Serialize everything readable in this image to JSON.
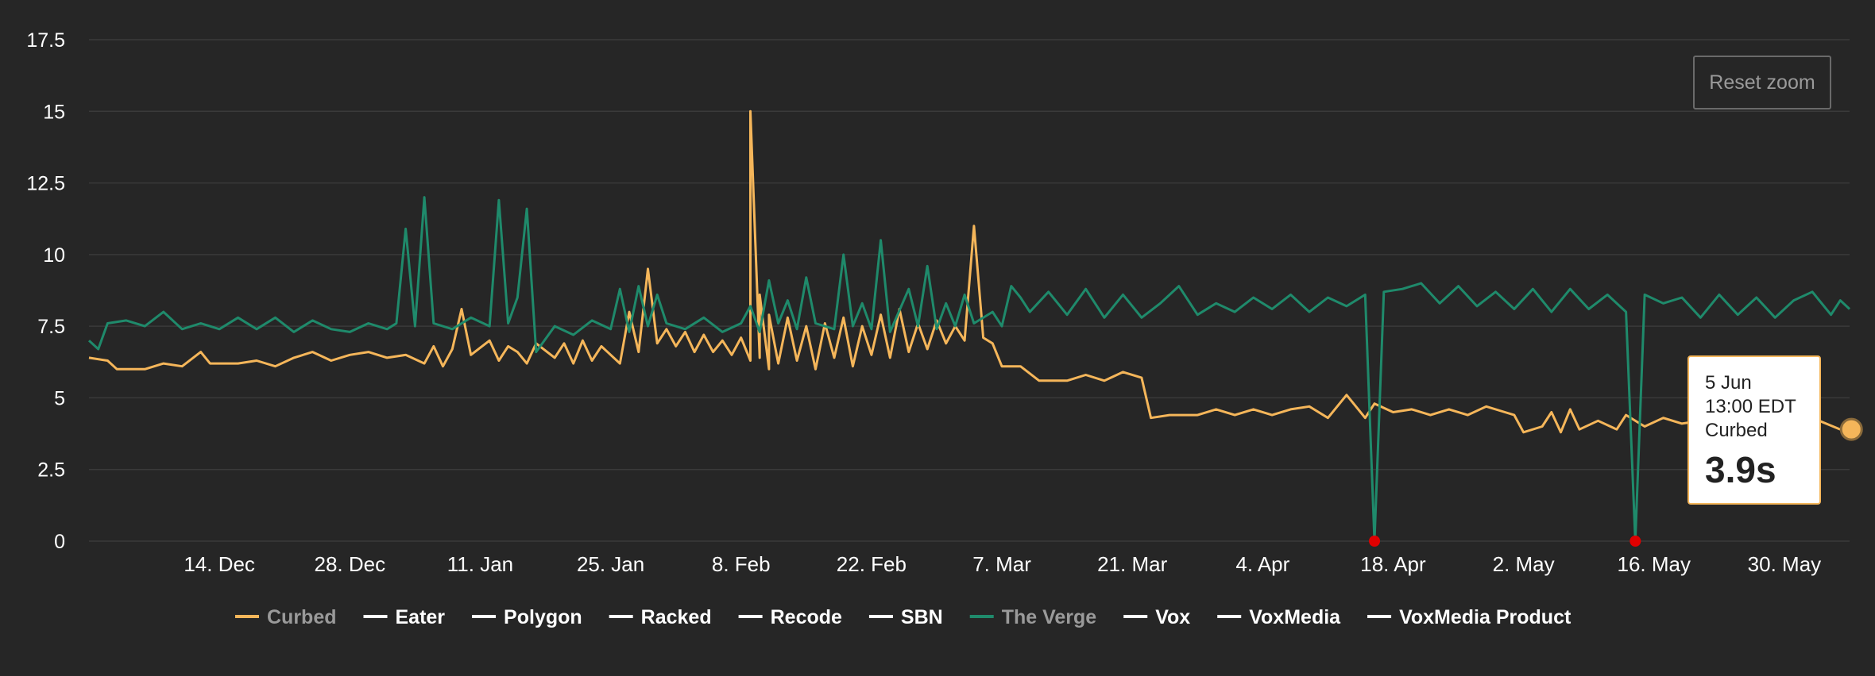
{
  "chart_data": {
    "type": "line",
    "title": "",
    "xlabel": "",
    "ylabel": "",
    "ylim": [
      0,
      17.5
    ],
    "yticks": [
      "0",
      "2.5",
      "5",
      "7.5",
      "10",
      "12.5",
      "15",
      "17.5"
    ],
    "xlim": [
      "2015-11-30",
      "2016-06-06"
    ],
    "xticks": [
      {
        "date": "2015-12-14",
        "label": "14. Dec"
      },
      {
        "date": "2015-12-28",
        "label": "28. Dec"
      },
      {
        "date": "2016-01-11",
        "label": "11. Jan"
      },
      {
        "date": "2016-01-25",
        "label": "25. Jan"
      },
      {
        "date": "2016-02-08",
        "label": "8. Feb"
      },
      {
        "date": "2016-02-22",
        "label": "22. Feb"
      },
      {
        "date": "2016-03-07",
        "label": "7. Mar"
      },
      {
        "date": "2016-03-21",
        "label": "21. Mar"
      },
      {
        "date": "2016-04-04",
        "label": "4. Apr"
      },
      {
        "date": "2016-04-18",
        "label": "18. Apr"
      },
      {
        "date": "2016-05-02",
        "label": "2. May"
      },
      {
        "date": "2016-05-16",
        "label": "16. May"
      },
      {
        "date": "2016-05-30",
        "label": "30. May"
      }
    ],
    "grid": true,
    "legend_placement": "bottom",
    "series": [
      {
        "name": "Curbed",
        "visible": true,
        "color": "#f5b65a",
        "points": [
          [
            "2015-11-30",
            6.4
          ],
          [
            "2015-12-02",
            6.3
          ],
          [
            "2015-12-03",
            6.0
          ],
          [
            "2015-12-06",
            6.0
          ],
          [
            "2015-12-08",
            6.2
          ],
          [
            "2015-12-10",
            6.1
          ],
          [
            "2015-12-12",
            6.6
          ],
          [
            "2015-12-13",
            6.2
          ],
          [
            "2015-12-16",
            6.2
          ],
          [
            "2015-12-18",
            6.3
          ],
          [
            "2015-12-20",
            6.1
          ],
          [
            "2015-12-22",
            6.4
          ],
          [
            "2015-12-24",
            6.6
          ],
          [
            "2015-12-26",
            6.3
          ],
          [
            "2015-12-28",
            6.5
          ],
          [
            "2015-12-30",
            6.6
          ],
          [
            "2016-01-01",
            6.4
          ],
          [
            "2016-01-03",
            6.5
          ],
          [
            "2016-01-05",
            6.2
          ],
          [
            "2016-01-06",
            6.8
          ],
          [
            "2016-01-07",
            6.1
          ],
          [
            "2016-01-08",
            6.7
          ],
          [
            "2016-01-09",
            8.1
          ],
          [
            "2016-01-10",
            6.5
          ],
          [
            "2016-01-12",
            7.0
          ],
          [
            "2016-01-13",
            6.3
          ],
          [
            "2016-01-14",
            6.8
          ],
          [
            "2016-01-15",
            6.6
          ],
          [
            "2016-01-16",
            6.2
          ],
          [
            "2016-01-17",
            6.9
          ],
          [
            "2016-01-19",
            6.4
          ],
          [
            "2016-01-20",
            6.9
          ],
          [
            "2016-01-21",
            6.2
          ],
          [
            "2016-01-22",
            7.0
          ],
          [
            "2016-01-23",
            6.3
          ],
          [
            "2016-01-24",
            6.8
          ],
          [
            "2016-01-26",
            6.2
          ],
          [
            "2016-01-27",
            8.0
          ],
          [
            "2016-01-28",
            6.6
          ],
          [
            "2016-01-29",
            9.5
          ],
          [
            "2016-01-30",
            6.9
          ],
          [
            "2016-01-31",
            7.4
          ],
          [
            "2016-02-01",
            6.8
          ],
          [
            "2016-02-02",
            7.3
          ],
          [
            "2016-02-03",
            6.6
          ],
          [
            "2016-02-04",
            7.2
          ],
          [
            "2016-02-05",
            6.6
          ],
          [
            "2016-02-06",
            7.0
          ],
          [
            "2016-02-07",
            6.5
          ],
          [
            "2016-02-08",
            7.1
          ],
          [
            "2016-02-09",
            6.3
          ],
          [
            "2016-02-09",
            15.0
          ],
          [
            "2016-02-10",
            6.4
          ],
          [
            "2016-02-10",
            8.6
          ],
          [
            "2016-02-11",
            6.0
          ],
          [
            "2016-02-11",
            7.9
          ],
          [
            "2016-02-12",
            6.2
          ],
          [
            "2016-02-13",
            7.8
          ],
          [
            "2016-02-14",
            6.3
          ],
          [
            "2016-02-15",
            7.5
          ],
          [
            "2016-02-16",
            6.0
          ],
          [
            "2016-02-17",
            7.6
          ],
          [
            "2016-02-18",
            6.4
          ],
          [
            "2016-02-19",
            7.8
          ],
          [
            "2016-02-20",
            6.1
          ],
          [
            "2016-02-21",
            7.5
          ],
          [
            "2016-02-22",
            6.5
          ],
          [
            "2016-02-23",
            7.9
          ],
          [
            "2016-02-24",
            6.4
          ],
          [
            "2016-02-25",
            8.1
          ],
          [
            "2016-02-26",
            6.6
          ],
          [
            "2016-02-27",
            7.6
          ],
          [
            "2016-02-28",
            6.7
          ],
          [
            "2016-02-29",
            7.7
          ],
          [
            "2016-03-01",
            6.9
          ],
          [
            "2016-03-02",
            7.5
          ],
          [
            "2016-03-03",
            7.0
          ],
          [
            "2016-03-04",
            11.0
          ],
          [
            "2016-03-05",
            7.1
          ],
          [
            "2016-03-06",
            6.9
          ],
          [
            "2016-03-07",
            6.1
          ],
          [
            "2016-03-09",
            6.1
          ],
          [
            "2016-03-11",
            5.6
          ],
          [
            "2016-03-14",
            5.6
          ],
          [
            "2016-03-16",
            5.8
          ],
          [
            "2016-03-18",
            5.6
          ],
          [
            "2016-03-20",
            5.9
          ],
          [
            "2016-03-22",
            5.7
          ],
          [
            "2016-03-23",
            4.3
          ],
          [
            "2016-03-25",
            4.4
          ],
          [
            "2016-03-28",
            4.4
          ],
          [
            "2016-03-30",
            4.6
          ],
          [
            "2016-04-01",
            4.4
          ],
          [
            "2016-04-03",
            4.6
          ],
          [
            "2016-04-05",
            4.4
          ],
          [
            "2016-04-07",
            4.6
          ],
          [
            "2016-04-09",
            4.7
          ],
          [
            "2016-04-11",
            4.3
          ],
          [
            "2016-04-13",
            5.1
          ],
          [
            "2016-04-15",
            4.3
          ],
          [
            "2016-04-16",
            4.8
          ],
          [
            "2016-04-18",
            4.5
          ],
          [
            "2016-04-20",
            4.6
          ],
          [
            "2016-04-22",
            4.4
          ],
          [
            "2016-04-24",
            4.6
          ],
          [
            "2016-04-26",
            4.4
          ],
          [
            "2016-04-28",
            4.7
          ],
          [
            "2016-04-30",
            4.5
          ],
          [
            "2016-05-01",
            4.4
          ],
          [
            "2016-05-02",
            3.8
          ],
          [
            "2016-05-04",
            4.0
          ],
          [
            "2016-05-05",
            4.5
          ],
          [
            "2016-05-06",
            3.8
          ],
          [
            "2016-05-07",
            4.6
          ],
          [
            "2016-05-08",
            3.9
          ],
          [
            "2016-05-10",
            4.2
          ],
          [
            "2016-05-12",
            3.9
          ],
          [
            "2016-05-13",
            4.4
          ],
          [
            "2016-05-15",
            4.0
          ],
          [
            "2016-05-17",
            4.3
          ],
          [
            "2016-05-19",
            4.1
          ],
          [
            "2016-05-21",
            4.2
          ],
          [
            "2016-05-23",
            4.0
          ],
          [
            "2016-05-25",
            4.4
          ],
          [
            "2016-05-27",
            4.1
          ],
          [
            "2016-05-29",
            4.5
          ],
          [
            "2016-05-31",
            4.2
          ],
          [
            "2016-06-02",
            4.3
          ],
          [
            "2016-06-05",
            3.9
          ]
        ]
      },
      {
        "name": "Eater",
        "visible": false,
        "color": "#ffffff",
        "points": []
      },
      {
        "name": "Polygon",
        "visible": false,
        "color": "#ffffff",
        "points": []
      },
      {
        "name": "Racked",
        "visible": false,
        "color": "#ffffff",
        "points": []
      },
      {
        "name": "Recode",
        "visible": false,
        "color": "#ffffff",
        "points": []
      },
      {
        "name": "SBN",
        "visible": false,
        "color": "#ffffff",
        "points": []
      },
      {
        "name": "The Verge",
        "visible": true,
        "color": "#1f8a6b",
        "points": [
          [
            "2015-11-30",
            7.0
          ],
          [
            "2015-12-01",
            6.7
          ],
          [
            "2015-12-02",
            7.6
          ],
          [
            "2015-12-04",
            7.7
          ],
          [
            "2015-12-06",
            7.5
          ],
          [
            "2015-12-08",
            8.0
          ],
          [
            "2015-12-10",
            7.4
          ],
          [
            "2015-12-12",
            7.6
          ],
          [
            "2015-12-14",
            7.4
          ],
          [
            "2015-12-16",
            7.8
          ],
          [
            "2015-12-18",
            7.4
          ],
          [
            "2015-12-20",
            7.8
          ],
          [
            "2015-12-22",
            7.3
          ],
          [
            "2015-12-24",
            7.7
          ],
          [
            "2015-12-26",
            7.4
          ],
          [
            "2015-12-28",
            7.3
          ],
          [
            "2015-12-30",
            7.6
          ],
          [
            "2016-01-01",
            7.4
          ],
          [
            "2016-01-02",
            7.6
          ],
          [
            "2016-01-03",
            10.9
          ],
          [
            "2016-01-04",
            7.5
          ],
          [
            "2016-01-05",
            12.0
          ],
          [
            "2016-01-06",
            7.6
          ],
          [
            "2016-01-08",
            7.4
          ],
          [
            "2016-01-10",
            7.8
          ],
          [
            "2016-01-12",
            7.5
          ],
          [
            "2016-01-13",
            11.9
          ],
          [
            "2016-01-14",
            7.6
          ],
          [
            "2016-01-15",
            8.5
          ],
          [
            "2016-01-16",
            11.6
          ],
          [
            "2016-01-17",
            6.6
          ],
          [
            "2016-01-19",
            7.5
          ],
          [
            "2016-01-21",
            7.2
          ],
          [
            "2016-01-23",
            7.7
          ],
          [
            "2016-01-25",
            7.4
          ],
          [
            "2016-01-26",
            8.8
          ],
          [
            "2016-01-27",
            7.3
          ],
          [
            "2016-01-28",
            8.9
          ],
          [
            "2016-01-29",
            7.5
          ],
          [
            "2016-01-30",
            8.6
          ],
          [
            "2016-01-31",
            7.6
          ],
          [
            "2016-02-02",
            7.4
          ],
          [
            "2016-02-04",
            7.8
          ],
          [
            "2016-02-06",
            7.3
          ],
          [
            "2016-02-08",
            7.6
          ],
          [
            "2016-02-09",
            8.2
          ],
          [
            "2016-02-10",
            7.3
          ],
          [
            "2016-02-11",
            9.1
          ],
          [
            "2016-02-12",
            7.6
          ],
          [
            "2016-02-13",
            8.4
          ],
          [
            "2016-02-14",
            7.4
          ],
          [
            "2016-02-15",
            9.2
          ],
          [
            "2016-02-16",
            7.6
          ],
          [
            "2016-02-18",
            7.4
          ],
          [
            "2016-02-19",
            10.0
          ],
          [
            "2016-02-20",
            7.5
          ],
          [
            "2016-02-21",
            8.3
          ],
          [
            "2016-02-22",
            7.4
          ],
          [
            "2016-02-23",
            10.5
          ],
          [
            "2016-02-24",
            7.3
          ],
          [
            "2016-02-26",
            8.8
          ],
          [
            "2016-02-27",
            7.5
          ],
          [
            "2016-02-28",
            9.6
          ],
          [
            "2016-02-29",
            7.4
          ],
          [
            "2016-03-01",
            8.3
          ],
          [
            "2016-03-02",
            7.5
          ],
          [
            "2016-03-03",
            8.6
          ],
          [
            "2016-03-04",
            7.6
          ],
          [
            "2016-03-06",
            8.0
          ],
          [
            "2016-03-07",
            7.5
          ],
          [
            "2016-03-08",
            8.9
          ],
          [
            "2016-03-09",
            8.5
          ],
          [
            "2016-03-10",
            8.0
          ],
          [
            "2016-03-12",
            8.7
          ],
          [
            "2016-03-14",
            7.9
          ],
          [
            "2016-03-16",
            8.8
          ],
          [
            "2016-03-18",
            7.8
          ],
          [
            "2016-03-20",
            8.6
          ],
          [
            "2016-03-22",
            7.8
          ],
          [
            "2016-03-24",
            8.3
          ],
          [
            "2016-03-26",
            8.9
          ],
          [
            "2016-03-28",
            7.9
          ],
          [
            "2016-03-30",
            8.3
          ],
          [
            "2016-04-01",
            8.0
          ],
          [
            "2016-04-03",
            8.5
          ],
          [
            "2016-04-05",
            8.1
          ],
          [
            "2016-04-07",
            8.6
          ],
          [
            "2016-04-09",
            8.0
          ],
          [
            "2016-04-11",
            8.5
          ],
          [
            "2016-04-13",
            8.2
          ],
          [
            "2016-04-15",
            8.6
          ],
          [
            "2016-04-16",
            0
          ],
          [
            "2016-04-17",
            8.7
          ],
          [
            "2016-04-19",
            8.8
          ],
          [
            "2016-04-21",
            9.0
          ],
          [
            "2016-04-23",
            8.3
          ],
          [
            "2016-04-25",
            8.9
          ],
          [
            "2016-04-27",
            8.2
          ],
          [
            "2016-04-29",
            8.7
          ],
          [
            "2016-05-01",
            8.1
          ],
          [
            "2016-05-03",
            8.8
          ],
          [
            "2016-05-05",
            8.0
          ],
          [
            "2016-05-07",
            8.8
          ],
          [
            "2016-05-09",
            8.1
          ],
          [
            "2016-05-11",
            8.6
          ],
          [
            "2016-05-13",
            8.0
          ],
          [
            "2016-05-14",
            0
          ],
          [
            "2016-05-15",
            8.6
          ],
          [
            "2016-05-17",
            8.3
          ],
          [
            "2016-05-19",
            8.5
          ],
          [
            "2016-05-21",
            7.8
          ],
          [
            "2016-05-23",
            8.6
          ],
          [
            "2016-05-25",
            7.9
          ],
          [
            "2016-05-27",
            8.5
          ],
          [
            "2016-05-29",
            7.8
          ],
          [
            "2016-05-31",
            8.4
          ],
          [
            "2016-06-02",
            8.7
          ],
          [
            "2016-06-04",
            7.9
          ],
          [
            "2016-06-05",
            8.4
          ],
          [
            "2016-06-06",
            8.1
          ]
        ]
      },
      {
        "name": "Vox",
        "visible": false,
        "color": "#ffffff",
        "points": []
      },
      {
        "name": "VoxMedia",
        "visible": false,
        "color": "#ffffff",
        "points": []
      },
      {
        "name": "VoxMedia Product",
        "visible": false,
        "color": "#ffffff",
        "points": []
      }
    ],
    "annotations": [
      {
        "date": "2016-04-16",
        "value": 0,
        "color": "#e00000"
      },
      {
        "date": "2016-05-14",
        "value": 0,
        "color": "#e00000"
      }
    ],
    "tooltip": {
      "date": "5 Jun",
      "time": "13:00 EDT",
      "series": "Curbed",
      "value": "3.9s",
      "point": [
        "2016-06-05",
        3.9
      ]
    }
  },
  "toolbar": {
    "reset_zoom_label": "Reset zoom"
  },
  "colors": {
    "background": "#262626",
    "grid": "#3a3a3a",
    "legend_active_text": "#9a9a9a",
    "legend_inactive_text": "#ffffff"
  }
}
